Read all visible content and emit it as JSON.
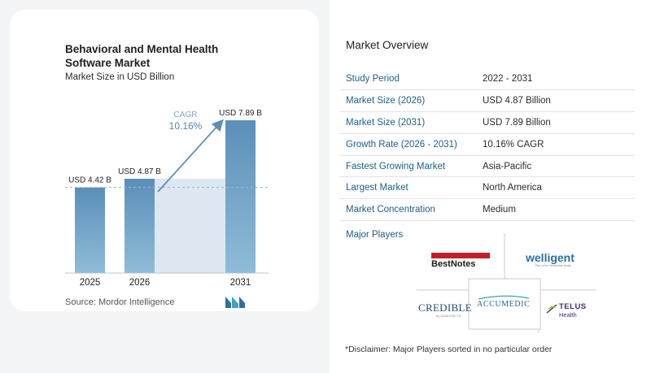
{
  "chart": {
    "title": "Behavioral and Mental Health Software Market",
    "subtitle": "Market Size in USD Billion",
    "source": "Source: Mordor Intelligence",
    "cagr_label": "CAGR",
    "cagr_value": "10.16%"
  },
  "chart_data": {
    "type": "bar",
    "title": "Behavioral and Mental Health Software Market",
    "subtitle": "Market Size in USD Billion",
    "categories": [
      "2025",
      "2026",
      "2031"
    ],
    "values": [
      4.42,
      4.87,
      7.89
    ],
    "value_labels": [
      "USD 4.42 B",
      "USD 4.87 B",
      "USD 7.89 B"
    ],
    "ylim": [
      0,
      8.5
    ],
    "bar_color": "#5b8fb9",
    "annotation": {
      "label": "CAGR",
      "value": "10.16%"
    }
  },
  "overview": {
    "title": "Market Overview",
    "rows": [
      {
        "key": "Study Period",
        "value": "2022 - 2031"
      },
      {
        "key": "Market Size (2026)",
        "value": "USD 4.87 Billion"
      },
      {
        "key": "Market Size (2031)",
        "value": "USD 7.89 Billion"
      },
      {
        "key": "Growth Rate (2026 - 2031)",
        "value": "10.16% CAGR"
      },
      {
        "key": "Fastest Growing Market",
        "value": "Asia-Pacific"
      },
      {
        "key": "Largest Market",
        "value": "North America"
      },
      {
        "key": "Market Concentration",
        "value": "Medium"
      }
    ]
  },
  "players": {
    "title": "Major Players",
    "logos": {
      "bestnotes": "BestNotes",
      "welligent": "welligent",
      "welligent_tag": "Part of the Streamline family",
      "credible": "CREDIBLE",
      "credible_tag": "by QUALIFACTS",
      "accumedic": "ACCUMEDIC",
      "telus": "TELUS",
      "telus_sub": "Health"
    }
  },
  "disclaimer": "*Disclaimer: Major Players sorted in no particular order",
  "colors": {
    "bar": "#5b8fb9",
    "bar_light": "#8cb6d4",
    "shade": "#dde7f1",
    "accent": "#1d5e8c"
  }
}
